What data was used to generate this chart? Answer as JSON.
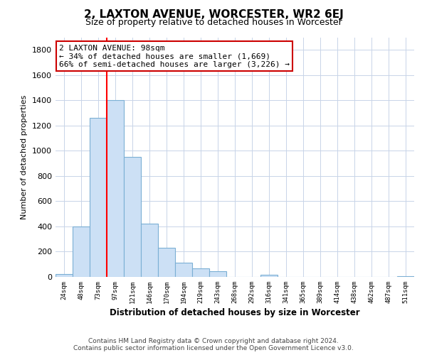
{
  "title": "2, LAXTON AVENUE, WORCESTER, WR2 6EJ",
  "subtitle": "Size of property relative to detached houses in Worcester",
  "xlabel": "Distribution of detached houses by size in Worcester",
  "ylabel": "Number of detached properties",
  "bar_values": [
    25,
    400,
    1260,
    1400,
    950,
    425,
    230,
    110,
    70,
    45,
    0,
    0,
    15,
    0,
    0,
    0,
    0,
    0,
    0,
    0,
    5
  ],
  "categories": [
    "24sqm",
    "48sqm",
    "73sqm",
    "97sqm",
    "121sqm",
    "146sqm",
    "170sqm",
    "194sqm",
    "219sqm",
    "243sqm",
    "268sqm",
    "292sqm",
    "316sqm",
    "341sqm",
    "365sqm",
    "389sqm",
    "414sqm",
    "438sqm",
    "462sqm",
    "487sqm",
    "511sqm"
  ],
  "bar_color": "#cce0f5",
  "bar_edge_color": "#7bafd4",
  "red_line_bar_index": 3,
  "annotation_title": "2 LAXTON AVENUE: 98sqm",
  "annotation_line1": "← 34% of detached houses are smaller (1,669)",
  "annotation_line2": "66% of semi-detached houses are larger (3,226) →",
  "annotation_box_color": "#ffffff",
  "annotation_box_edge": "#cc0000",
  "ylim": [
    0,
    1900
  ],
  "yticks": [
    0,
    200,
    400,
    600,
    800,
    1000,
    1200,
    1400,
    1600,
    1800
  ],
  "footer_line1": "Contains HM Land Registry data © Crown copyright and database right 2024.",
  "footer_line2": "Contains public sector information licensed under the Open Government Licence v3.0.",
  "background_color": "#ffffff",
  "grid_color": "#c8d4e8"
}
